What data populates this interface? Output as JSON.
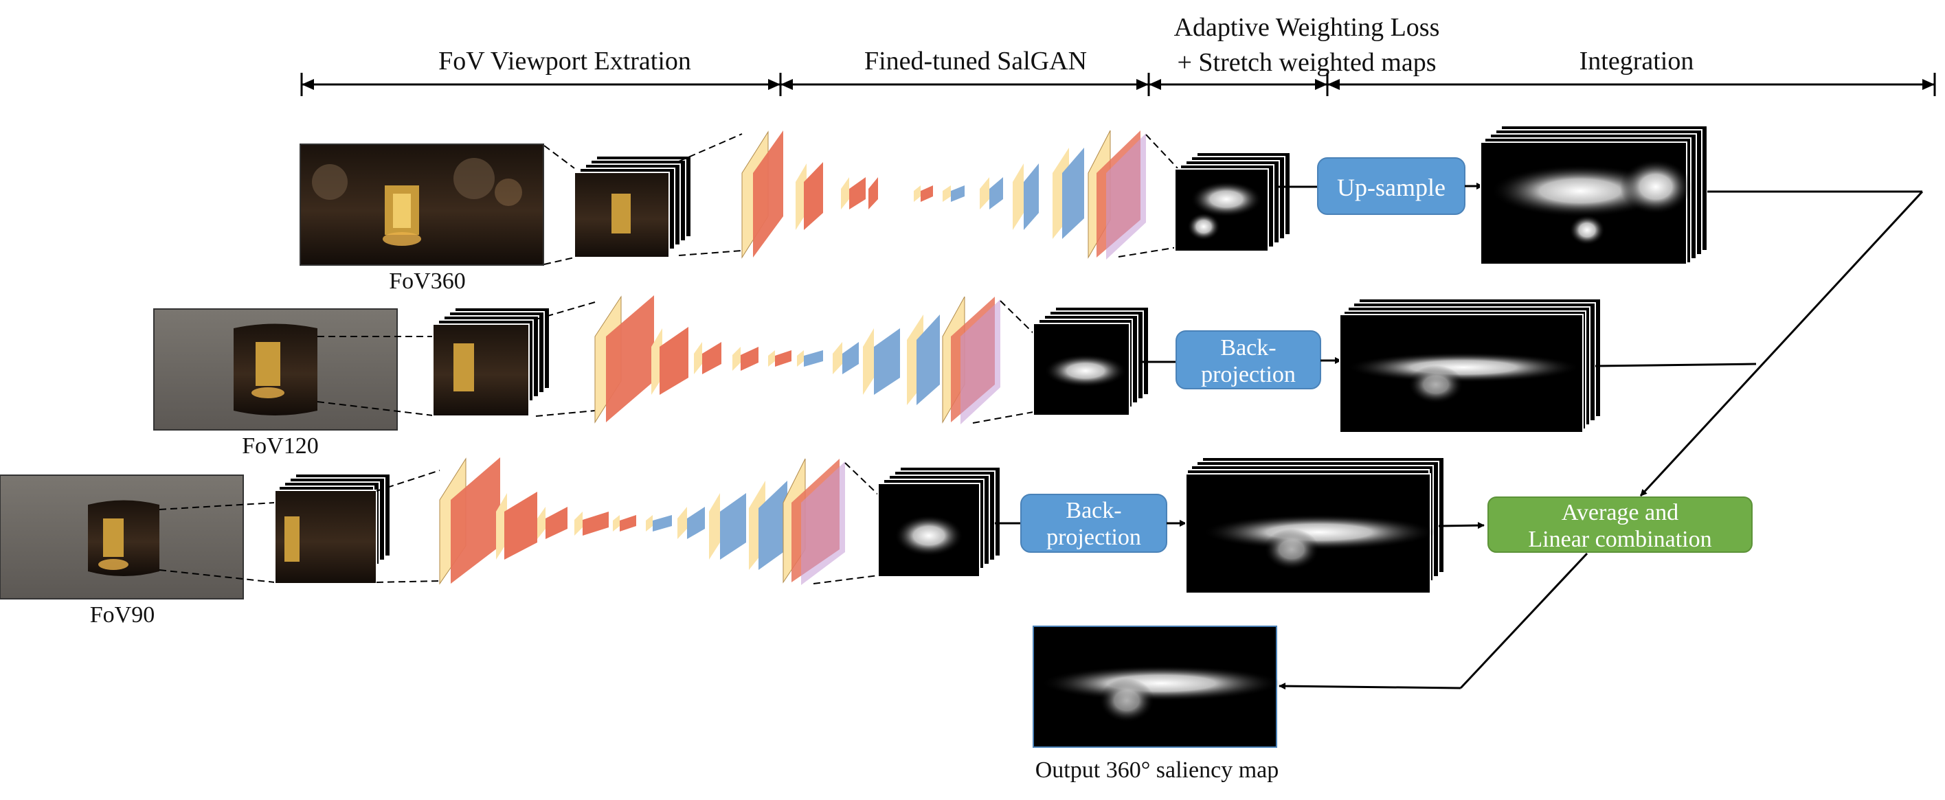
{
  "header": {
    "sections": [
      {
        "label": "FoV Viewport Extration"
      },
      {
        "label": "Fined-tuned SalGAN"
      },
      {
        "label_line1": "Adaptive Weighting Loss",
        "label_line2": "+ Stretch weighted maps"
      },
      {
        "label": "Integration"
      }
    ]
  },
  "inputs": [
    {
      "label": "FoV360"
    },
    {
      "label": "FoV120"
    },
    {
      "label": "FoV90"
    }
  ],
  "boxes": {
    "upsample": {
      "label": "Up-sample",
      "color": "#5b9bd5"
    },
    "backprojection_1": {
      "line1": "Back-",
      "line2": "projection",
      "color": "#5b9bd5"
    },
    "backprojection_2": {
      "line1": "Back-",
      "line2": "projection",
      "color": "#5b9bd5"
    },
    "combination": {
      "line1": "Average and",
      "line2": "Linear combination",
      "color": "#70ad47"
    }
  },
  "output": {
    "label": "Output 360° saliency map"
  },
  "colors": {
    "layer_yellow": "#fbe3a8",
    "layer_red": "#e8735a",
    "layer_blue": "#7fa9d6",
    "layer_purple": "#c59ad6",
    "night_scene": "#2a1d14"
  }
}
